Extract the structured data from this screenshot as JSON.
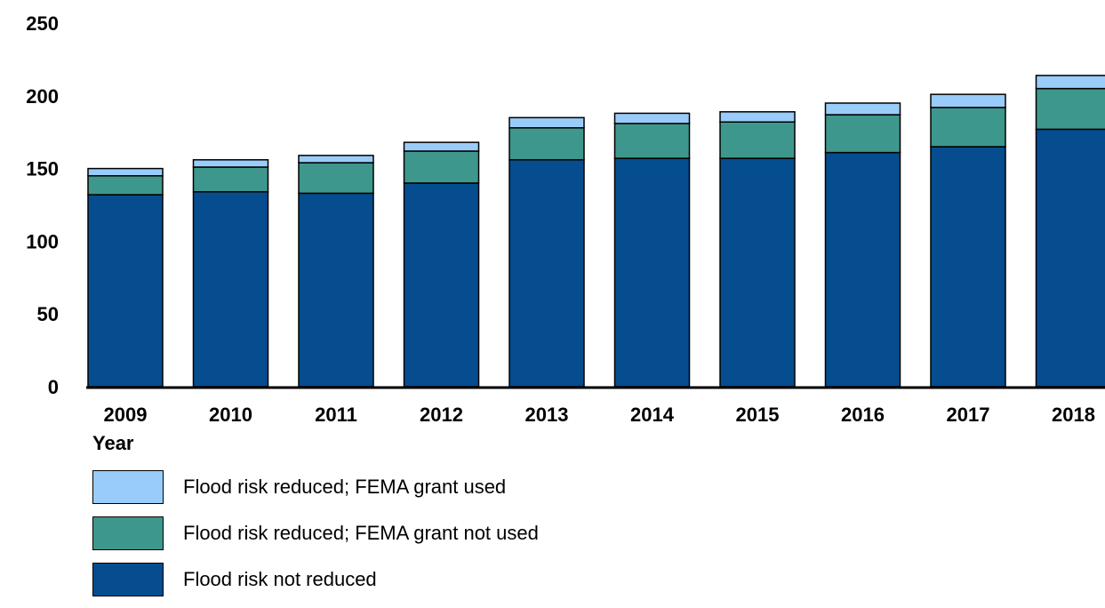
{
  "chart_data": {
    "type": "bar",
    "stacked": true,
    "title": "",
    "xlabel": "Year",
    "ylabel": "",
    "ylim": [
      0,
      250
    ],
    "yticks": [
      0,
      50,
      100,
      150,
      200,
      250
    ],
    "grid": false,
    "legend_position": "bottom-left",
    "categories": [
      "2009",
      "2010",
      "2011",
      "2012",
      "2013",
      "2014",
      "2015",
      "2016",
      "2017",
      "2018"
    ],
    "series": [
      {
        "name": "Flood risk not reduced",
        "color": "#054d8f",
        "values": [
          132,
          134,
          133,
          140,
          156,
          157,
          157,
          161,
          165,
          177
        ]
      },
      {
        "name": "Flood risk reduced; FEMA grant not used",
        "color": "#3e978c",
        "values": [
          13,
          17,
          21,
          22,
          22,
          24,
          25,
          26,
          27,
          28
        ]
      },
      {
        "name": "Flood risk reduced; FEMA grant used",
        "color": "#99ccf8",
        "values": [
          5,
          5,
          5,
          6,
          7,
          7,
          7,
          8,
          9,
          9
        ]
      }
    ]
  },
  "legend": [
    {
      "label": "Flood risk reduced; FEMA grant used",
      "color": "#99ccf8"
    },
    {
      "label": "Flood risk reduced; FEMA grant not used",
      "color": "#3e978c"
    },
    {
      "label": "Flood risk not reduced",
      "color": "#054d8f"
    }
  ]
}
